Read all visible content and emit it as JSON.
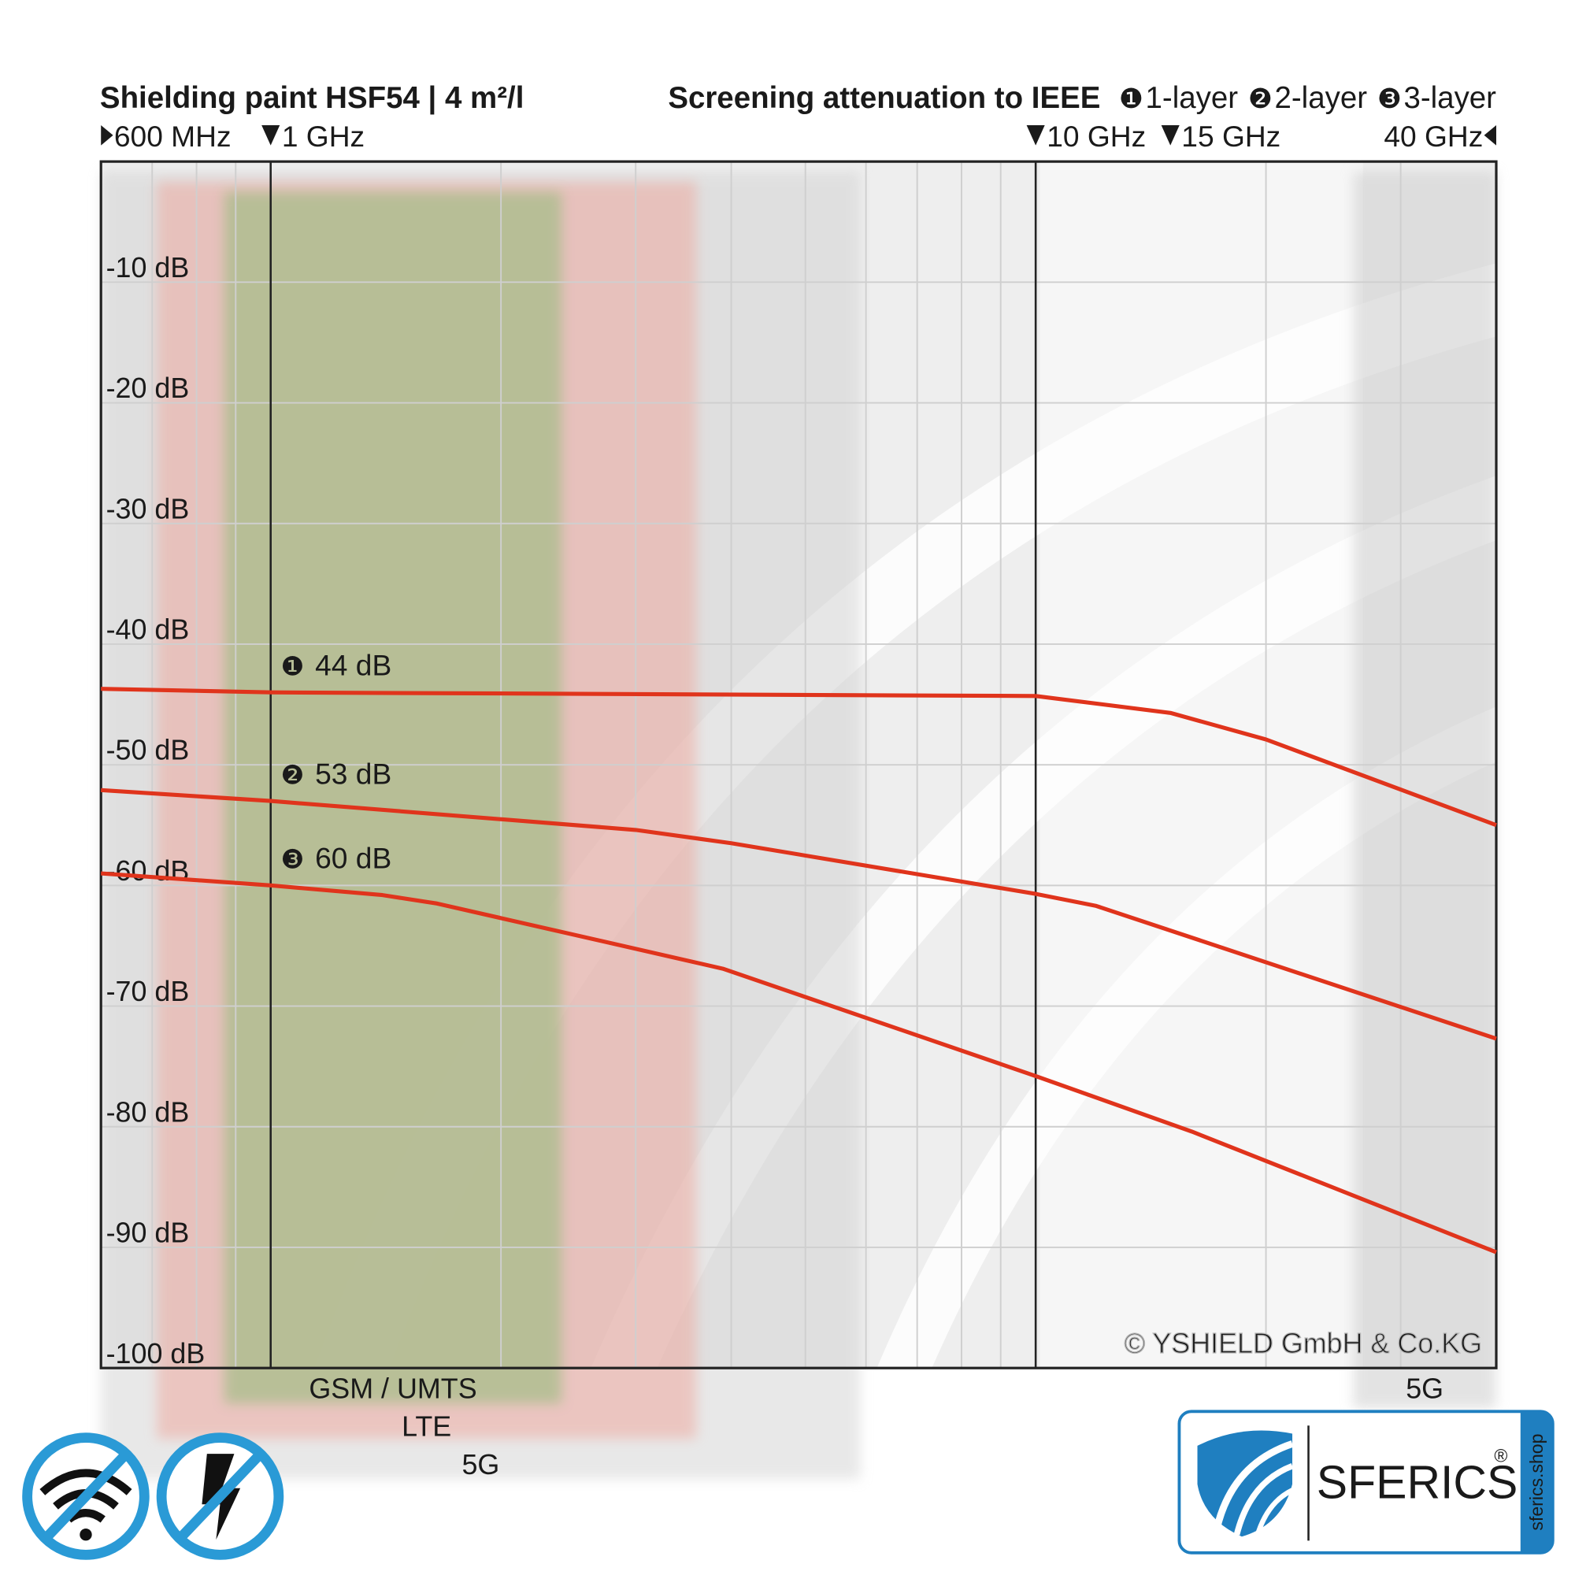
{
  "chart_data": {
    "type": "line",
    "title": "Shielding paint HSF54 | 4 m²/l",
    "subtitle": "Screening attenuation to IEEE",
    "x_scale": "log",
    "xlim": [
      600,
      40000
    ],
    "ylim": [
      -100,
      0
    ],
    "xticks": [
      {
        "value": 600,
        "label": "600 MHz"
      },
      {
        "value": 1000,
        "label": "1 GHz"
      },
      {
        "value": 10000,
        "label": "10 GHz"
      },
      {
        "value": 15000,
        "label": "15 GHz"
      },
      {
        "value": 40000,
        "label": "40 GHz"
      }
    ],
    "x_minor_grid": [
      700,
      800,
      900,
      2000,
      3000,
      4000,
      5000,
      6000,
      7000,
      8000,
      9000,
      20000,
      30000
    ],
    "x_major_lines": [
      1000,
      10000
    ],
    "yticks": [
      {
        "value": -10,
        "label": "-10 dB"
      },
      {
        "value": -20,
        "label": "-20 dB"
      },
      {
        "value": -30,
        "label": "-30 dB"
      },
      {
        "value": -40,
        "label": "-40 dB"
      },
      {
        "value": -50,
        "label": "-50 dB"
      },
      {
        "value": -60,
        "label": "-60 dB"
      },
      {
        "value": -70,
        "label": "-70 dB"
      },
      {
        "value": -80,
        "label": "-80 dB"
      },
      {
        "value": -90,
        "label": "-90 dB"
      },
      {
        "value": -100,
        "label": "-100 dB"
      }
    ],
    "grid": true,
    "bands": [
      {
        "name": "GSM / UMTS",
        "range": [
          870,
          2400
        ],
        "color": "#a7bd8a"
      },
      {
        "name": "LTE",
        "range": [
          710,
          3600
        ],
        "color": "#eeaaa0"
      },
      {
        "name": "5G",
        "range": [
          600,
          5900
        ],
        "color": "#d2d2d2"
      },
      {
        "name": "5G",
        "range": [
          26000,
          40000
        ],
        "color": "#d2d2d2"
      }
    ],
    "series": [
      {
        "name": "1-layer",
        "symbol": "❶",
        "color": "#e0341c",
        "x": [
          600,
          1000,
          10000,
          15000,
          20000,
          40000
        ],
        "values": [
          -43.7,
          -44,
          -44.3,
          -45.7,
          -47.9,
          -55
        ],
        "value_labels": [
          null,
          "44 dB",
          null,
          null,
          null,
          null
        ]
      },
      {
        "name": "2-layer",
        "symbol": "❷",
        "color": "#e0341c",
        "x": [
          600,
          1000,
          3000,
          4000,
          10000,
          12000,
          40000
        ],
        "values": [
          -52.1,
          -53,
          -55.4,
          -56.5,
          -60.7,
          -61.7,
          -72.7
        ],
        "value_labels": [
          null,
          "53 dB",
          null,
          null,
          null,
          null,
          null
        ]
      },
      {
        "name": "3-layer",
        "symbol": "❸",
        "color": "#e0341c",
        "x": [
          600,
          1000,
          1400,
          1650,
          3900,
          10000,
          16000,
          40000
        ],
        "values": [
          -59,
          -60,
          -60.8,
          -61.5,
          -66.9,
          -75.8,
          -80.4,
          -90.4
        ],
        "value_labels": [
          null,
          "60 dB",
          null,
          null,
          null,
          null,
          null,
          null
        ]
      }
    ]
  },
  "watermark": "© YSHIELD GmbH & Co.KG",
  "branding": {
    "name": "SFERICS",
    "mark": "®",
    "site": "sferics.shop"
  }
}
